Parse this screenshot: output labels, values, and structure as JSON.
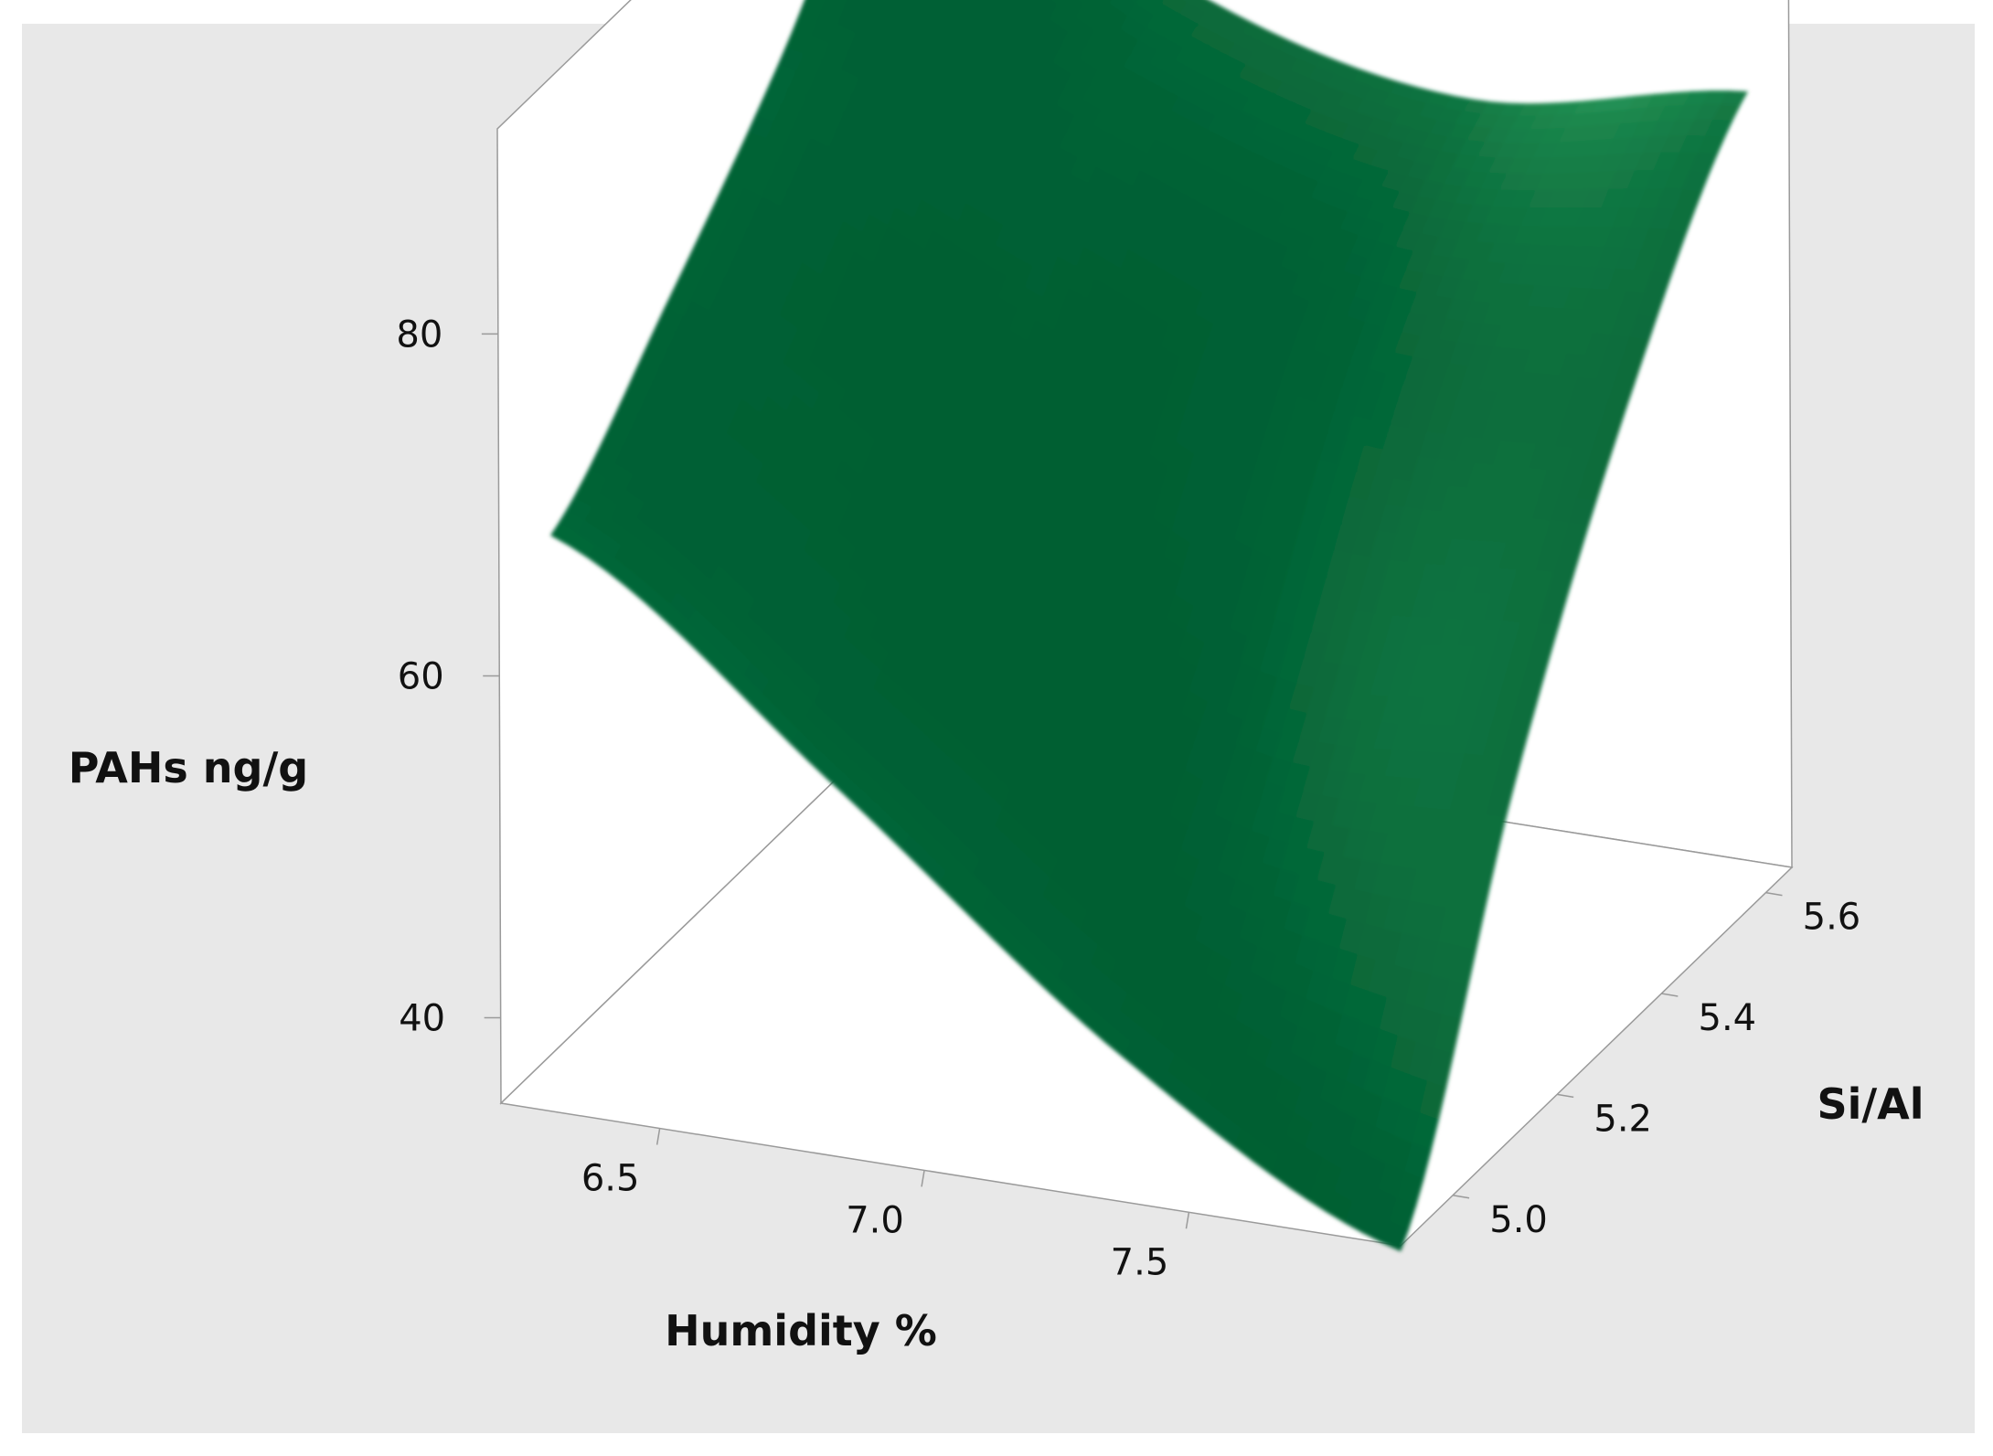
{
  "chart_data": {
    "type": "surface",
    "title": "",
    "xlabel": "Humidity %",
    "ylabel": "Si/Al",
    "zlabel": "PAHs ng/g",
    "xlim": [
      6.2,
      7.9
    ],
    "ylim": [
      4.9,
      5.65
    ],
    "zlim": [
      35,
      92
    ],
    "x_ticks": [
      "6.5",
      "7.0",
      "7.5"
    ],
    "y_ticks": [
      "5.0",
      "5.2",
      "5.4",
      "5.6"
    ],
    "z_ticks": [
      "40",
      "60",
      "80"
    ],
    "x": [
      6.25,
      6.8,
      7.3,
      7.85
    ],
    "y": [
      4.95,
      5.15,
      5.4,
      5.62
    ],
    "z": [
      [
        67,
        55,
        42,
        33
      ],
      [
        74,
        64,
        54,
        54
      ],
      [
        82,
        76,
        70,
        70
      ],
      [
        92,
        82,
        78,
        81
      ]
    ],
    "colormap": [
      "#005f33",
      "#1e8a4f",
      "#8ff0c0",
      "#e6fff2"
    ],
    "background": "#e8e8e8",
    "grid": false,
    "legend": "none"
  }
}
